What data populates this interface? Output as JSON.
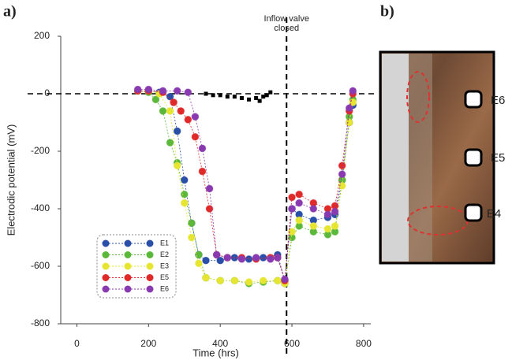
{
  "panel_labels": [
    "a)",
    "b)"
  ],
  "chart_data": {
    "type": "scatter",
    "x_label": "Time (hrs)",
    "y_label": "Electrodic potential (mV)",
    "annotation_lines": [
      "Inflow valve",
      "closed"
    ],
    "vline": 585,
    "hline": 0,
    "xlim": [
      -45,
      820
    ],
    "xticks": [
      0,
      200,
      400,
      600,
      800
    ],
    "ylim": [
      -800,
      200
    ],
    "yticks": [
      200,
      0,
      -200,
      -400,
      -600,
      -800
    ],
    "series": [
      {
        "name": "E1",
        "color": "#2a4fa8",
        "x": [
          170,
          200,
          230,
          260,
          280,
          300,
          320,
          340,
          360,
          400,
          440,
          480,
          520,
          560,
          580,
          600,
          620,
          660,
          700,
          720,
          740,
          760,
          770
        ],
        "values": [
          10,
          10,
          5,
          -10,
          -130,
          -300,
          -450,
          -560,
          -580,
          -580,
          -570,
          -575,
          -570,
          -560,
          -650,
          -400,
          -420,
          -440,
          -430,
          -420,
          -300,
          -100,
          -40
        ]
      },
      {
        "name": "E2",
        "color": "#5cb83a",
        "x": [
          170,
          200,
          220,
          240,
          260,
          280,
          300,
          320,
          340,
          360,
          400,
          440,
          480,
          520,
          560,
          580,
          600,
          620,
          660,
          700,
          720,
          740,
          760,
          770
        ],
        "values": [
          10,
          5,
          -20,
          -60,
          -170,
          -240,
          -350,
          -450,
          -560,
          -640,
          -650,
          -650,
          -660,
          -655,
          -650,
          -660,
          -500,
          -460,
          -480,
          -490,
          -480,
          -300,
          -80,
          -20
        ]
      },
      {
        "name": "E3",
        "color": "#e6e632",
        "x": [
          170,
          200,
          230,
          260,
          280,
          300,
          320,
          340,
          360,
          400,
          440,
          480,
          520,
          560,
          580,
          600,
          620,
          660,
          700,
          720,
          740,
          760,
          770
        ],
        "values": [
          10,
          10,
          0,
          -60,
          -250,
          -380,
          -500,
          -590,
          -640,
          -650,
          -650,
          -655,
          -650,
          -650,
          -660,
          -480,
          -440,
          -460,
          -470,
          -460,
          -320,
          -100,
          -30
        ]
      },
      {
        "name": "E5",
        "color": "#e02a2a",
        "x": [
          170,
          200,
          240,
          270,
          290,
          310,
          330,
          350,
          370,
          390,
          420,
          460,
          500,
          540,
          560,
          580,
          600,
          620,
          660,
          700,
          720,
          740,
          760,
          770
        ],
        "values": [
          10,
          10,
          5,
          -30,
          -60,
          -90,
          -150,
          -270,
          -400,
          -560,
          -570,
          -570,
          -575,
          -570,
          -570,
          -650,
          -360,
          -350,
          -380,
          -400,
          -390,
          -250,
          -60,
          0
        ]
      },
      {
        "name": "E6",
        "color": "#8a3ab0",
        "x": [
          170,
          200,
          240,
          280,
          310,
          330,
          350,
          370,
          390,
          420,
          460,
          500,
          540,
          560,
          580,
          600,
          620,
          660,
          700,
          720,
          740,
          760,
          770
        ],
        "values": [
          15,
          15,
          10,
          10,
          5,
          -80,
          -190,
          -330,
          -560,
          -570,
          -575,
          -570,
          -575,
          -570,
          -645,
          -400,
          -380,
          -400,
          -420,
          -410,
          -280,
          -50,
          10
        ]
      },
      {
        "color": "#000000",
        "marker": "square",
        "x": [
          360,
          380,
          400,
          420,
          440,
          460,
          480,
          500,
          510,
          520,
          530,
          540
        ],
        "values": [
          0,
          -5,
          -5,
          -10,
          -10,
          -15,
          -20,
          -15,
          -25,
          -10,
          -5,
          5
        ]
      }
    ]
  },
  "photo": {
    "electrode_labels": [
      "E6",
      "E5",
      "E4"
    ]
  }
}
